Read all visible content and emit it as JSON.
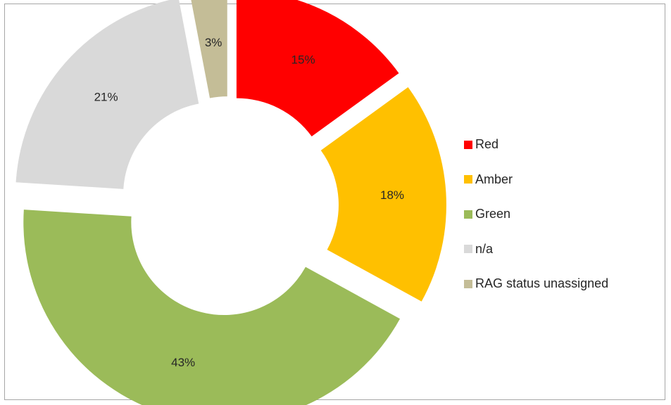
{
  "chart_data": {
    "type": "pie",
    "subtype": "exploded-donut",
    "title": "",
    "categories": [
      "Red",
      "Amber",
      "Green",
      "n/a",
      "RAG status unassigned"
    ],
    "values": [
      15,
      18,
      43,
      21,
      3
    ],
    "data_labels": [
      "15%",
      "18%",
      "43%",
      "21%",
      "3%"
    ],
    "colors": [
      "#ff0000",
      "#ffc000",
      "#9bbb59",
      "#d9d9d9",
      "#c4bd97"
    ],
    "legend_position": "right"
  },
  "legend": {
    "items": [
      {
        "label": "Red",
        "color": "#ff0000"
      },
      {
        "label": "Amber",
        "color": "#ffc000"
      },
      {
        "label": "Green",
        "color": "#9bbb59"
      },
      {
        "label": "n/a",
        "color": "#d9d9d9"
      },
      {
        "label": "RAG status unassigned",
        "color": "#c4bd97"
      }
    ]
  }
}
